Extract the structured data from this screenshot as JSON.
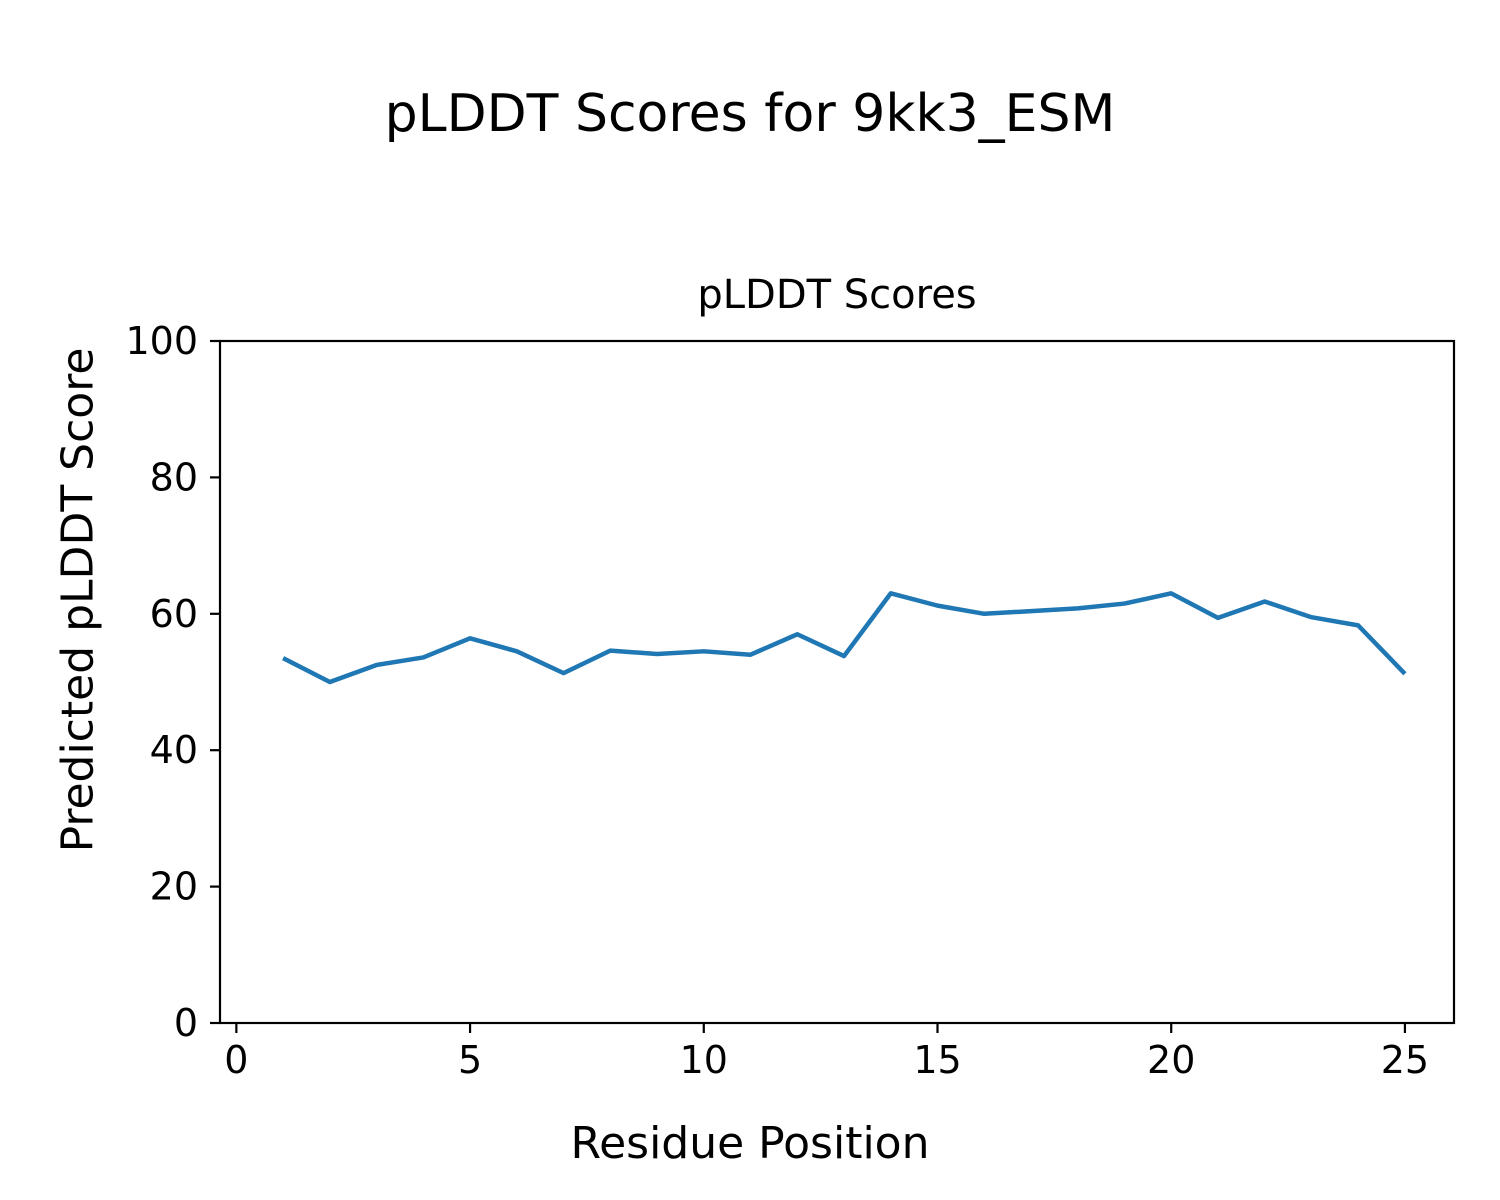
{
  "figure": {
    "suptitle": "pLDDT Scores for 9kk3_ESM"
  },
  "chart_data": {
    "type": "line",
    "title": "pLDDT Scores",
    "xlabel": "Residue Position",
    "ylabel": "Predicted pLDDT Score",
    "x": [
      1,
      2,
      3,
      4,
      5,
      6,
      7,
      8,
      9,
      10,
      11,
      12,
      13,
      14,
      15,
      16,
      17,
      18,
      19,
      20,
      21,
      22,
      23,
      24,
      25
    ],
    "series": [
      {
        "name": "pLDDT",
        "values": [
          53.5,
          50.0,
          52.5,
          53.6,
          56.4,
          54.5,
          51.3,
          54.6,
          54.1,
          54.5,
          54.0,
          57.0,
          53.8,
          63.0,
          61.2,
          60.0,
          60.4,
          60.8,
          61.5,
          63.0,
          59.4,
          61.8,
          59.5,
          58.3,
          51.2
        ]
      }
    ],
    "xlim": [
      -0.35,
      26.05
    ],
    "ylim": [
      0,
      100
    ],
    "x_ticks": [
      0,
      5,
      10,
      15,
      20,
      25
    ],
    "y_ticks": [
      0,
      20,
      40,
      60,
      80,
      100
    ],
    "line_color": "#1f77b4",
    "axis_color": "#000000",
    "grid": false,
    "legend": "none"
  }
}
